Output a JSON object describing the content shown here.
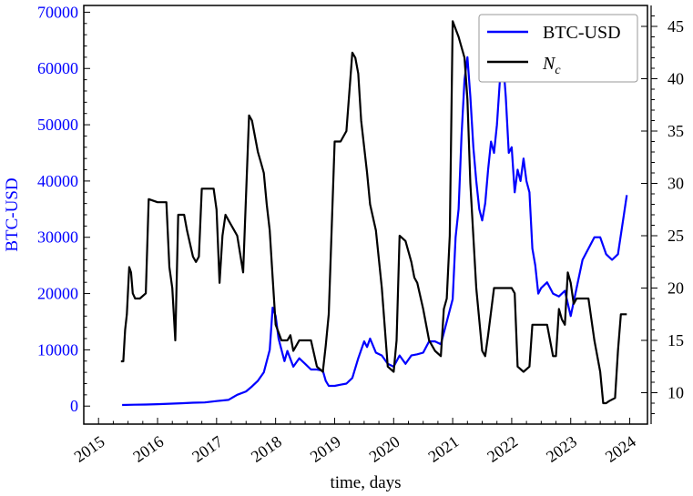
{
  "chart_data": {
    "type": "line",
    "xlabel": "time, days",
    "ylabel": "BTC-USD",
    "xlim": [
      2014.75,
      2024.3
    ],
    "ylim": [
      -3200,
      71200
    ],
    "y2lim": [
      7.0,
      47.0
    ],
    "x_ticks": [
      "2015",
      "2016",
      "2017",
      "2018",
      "2019",
      "2020",
      "2021",
      "2022",
      "2023",
      "2024"
    ],
    "y_ticks": [
      "0",
      "10000",
      "20000",
      "30000",
      "40000",
      "50000",
      "60000",
      "70000"
    ],
    "y2_ticks": [
      "10",
      "15",
      "20",
      "25",
      "30",
      "35",
      "40",
      "45"
    ],
    "legend": {
      "position": "top-right",
      "entries": [
        "BTC-USD",
        "N_c"
      ]
    },
    "colors": {
      "btc": "#0000ff",
      "nc": "#000000",
      "left_axis": "#0000ff",
      "right_axis": "#000000"
    },
    "series": [
      {
        "name": "BTC-USD",
        "axis": "left",
        "x": [
          2015.4,
          2015.6,
          2015.8,
          2016.0,
          2016.2,
          2016.4,
          2016.6,
          2016.8,
          2017.0,
          2017.2,
          2017.35,
          2017.5,
          2017.6,
          2017.7,
          2017.8,
          2017.9,
          2017.95,
          2018.0,
          2018.05,
          2018.1,
          2018.15,
          2018.2,
          2018.3,
          2018.4,
          2018.5,
          2018.6,
          2018.7,
          2018.8,
          2018.85,
          2018.9,
          2019.0,
          2019.1,
          2019.2,
          2019.3,
          2019.4,
          2019.5,
          2019.55,
          2019.6,
          2019.7,
          2019.8,
          2019.9,
          2020.0,
          2020.1,
          2020.2,
          2020.3,
          2020.4,
          2020.5,
          2020.6,
          2020.7,
          2020.8,
          2020.9,
          2021.0,
          2021.05,
          2021.1,
          2021.15,
          2021.2,
          2021.25,
          2021.3,
          2021.35,
          2021.4,
          2021.45,
          2021.5,
          2021.55,
          2021.6,
          2021.65,
          2021.7,
          2021.75,
          2021.8,
          2021.85,
          2021.9,
          2021.95,
          2022.0,
          2022.05,
          2022.1,
          2022.15,
          2022.2,
          2022.25,
          2022.3,
          2022.35,
          2022.4,
          2022.45,
          2022.5,
          2022.6,
          2022.7,
          2022.8,
          2022.9,
          2023.0,
          2023.1,
          2023.2,
          2023.3,
          2023.4,
          2023.5,
          2023.6,
          2023.7,
          2023.8,
          2023.9,
          2023.95
        ],
        "y": [
          200,
          250,
          280,
          350,
          420,
          500,
          600,
          650,
          900,
          1100,
          2000,
          2600,
          3500,
          4500,
          6000,
          10000,
          17500,
          16000,
          12000,
          10000,
          8000,
          9800,
          7000,
          8500,
          7500,
          6500,
          6500,
          6300,
          4500,
          3600,
          3600,
          3800,
          4000,
          5000,
          8500,
          11500,
          10500,
          12000,
          9500,
          9000,
          7500,
          7000,
          9000,
          7500,
          9000,
          9200,
          9500,
          11500,
          11500,
          11000,
          15000,
          19000,
          30000,
          35000,
          48000,
          58000,
          62000,
          55000,
          46000,
          40000,
          35000,
          33000,
          36000,
          42000,
          47000,
          45000,
          50000,
          58000,
          62000,
          55000,
          45000,
          46000,
          38000,
          42000,
          40000,
          44000,
          40000,
          38000,
          28000,
          25000,
          20000,
          21000,
          22000,
          20000,
          19500,
          20500,
          16000,
          21000,
          26000,
          28000,
          30000,
          30000,
          27000,
          26000,
          27000,
          34000,
          37500
        ]
      },
      {
        "name": "N_c",
        "axis": "right",
        "x": [
          2015.38,
          2015.42,
          2015.45,
          2015.48,
          2015.52,
          2015.55,
          2015.58,
          2015.62,
          2015.7,
          2015.8,
          2015.85,
          2016.0,
          2016.1,
          2016.15,
          2016.2,
          2016.25,
          2016.3,
          2016.35,
          2016.4,
          2016.45,
          2016.5,
          2016.6,
          2016.65,
          2016.7,
          2016.75,
          2016.85,
          2016.95,
          2017.0,
          2017.05,
          2017.1,
          2017.15,
          2017.2,
          2017.25,
          2017.3,
          2017.35,
          2017.45,
          2017.55,
          2017.6,
          2017.7,
          2017.75,
          2017.8,
          2017.85,
          2017.9,
          2017.95,
          2018.0,
          2018.1,
          2018.2,
          2018.25,
          2018.3,
          2018.4,
          2018.5,
          2018.6,
          2018.7,
          2018.8,
          2018.85,
          2018.9,
          2019.0,
          2019.05,
          2019.1,
          2019.2,
          2019.3,
          2019.35,
          2019.4,
          2019.45,
          2019.55,
          2019.6,
          2019.7,
          2019.8,
          2019.9,
          2020.0,
          2020.05,
          2020.1,
          2020.2,
          2020.3,
          2020.35,
          2020.4,
          2020.5,
          2020.6,
          2020.7,
          2020.8,
          2020.85,
          2020.9,
          2020.95,
          2021.0,
          2021.1,
          2021.2,
          2021.25,
          2021.3,
          2021.4,
          2021.5,
          2021.55,
          2021.6,
          2021.7,
          2021.8,
          2021.9,
          2022.0,
          2022.05,
          2022.1,
          2022.2,
          2022.3,
          2022.35,
          2022.4,
          2022.5,
          2022.6,
          2022.7,
          2022.75,
          2022.8,
          2022.85,
          2022.9,
          2022.95,
          2023.0,
          2023.05,
          2023.1,
          2023.2,
          2023.3,
          2023.4,
          2023.5,
          2023.55,
          2023.6,
          2023.65,
          2023.75,
          2023.8,
          2023.85,
          2023.9,
          2023.95
        ],
        "y": [
          13.0,
          13.0,
          16.0,
          17.5,
          22.0,
          21.5,
          19.5,
          19.0,
          19.0,
          19.5,
          28.5,
          28.2,
          28.2,
          28.2,
          22.0,
          20.0,
          15.0,
          27.0,
          27.0,
          27.0,
          25.5,
          23.0,
          22.5,
          23.0,
          29.5,
          29.5,
          29.5,
          27.5,
          20.5,
          25.0,
          27.0,
          26.5,
          26.0,
          25.5,
          25.0,
          21.5,
          36.5,
          36.0,
          33.0,
          32.0,
          31.0,
          28.0,
          25.5,
          21.0,
          16.5,
          15.0,
          15.0,
          15.5,
          14.0,
          15.0,
          15.0,
          15.0,
          12.5,
          12.0,
          14.5,
          17.5,
          34.0,
          34.0,
          34.0,
          35.0,
          42.5,
          42.0,
          40.5,
          36.0,
          31.0,
          28.0,
          25.5,
          20.0,
          12.5,
          12.0,
          15.0,
          25.0,
          24.5,
          22.5,
          21.0,
          20.5,
          18.0,
          15.0,
          14.0,
          13.5,
          18.0,
          19.0,
          25.0,
          45.5,
          44.0,
          42.0,
          38.0,
          30.0,
          20.0,
          14.0,
          13.5,
          15.5,
          20.0,
          20.0,
          20.0,
          20.0,
          19.5,
          12.5,
          12.0,
          12.5,
          16.5,
          16.5,
          16.5,
          16.5,
          13.5,
          13.5,
          18.0,
          17.0,
          16.5,
          21.5,
          20.5,
          18.5,
          19.0,
          19.0,
          19.0,
          15.0,
          12.0,
          9.0,
          9.0,
          9.2,
          9.5,
          14.0,
          17.5,
          17.5,
          17.5
        ]
      }
    ]
  }
}
